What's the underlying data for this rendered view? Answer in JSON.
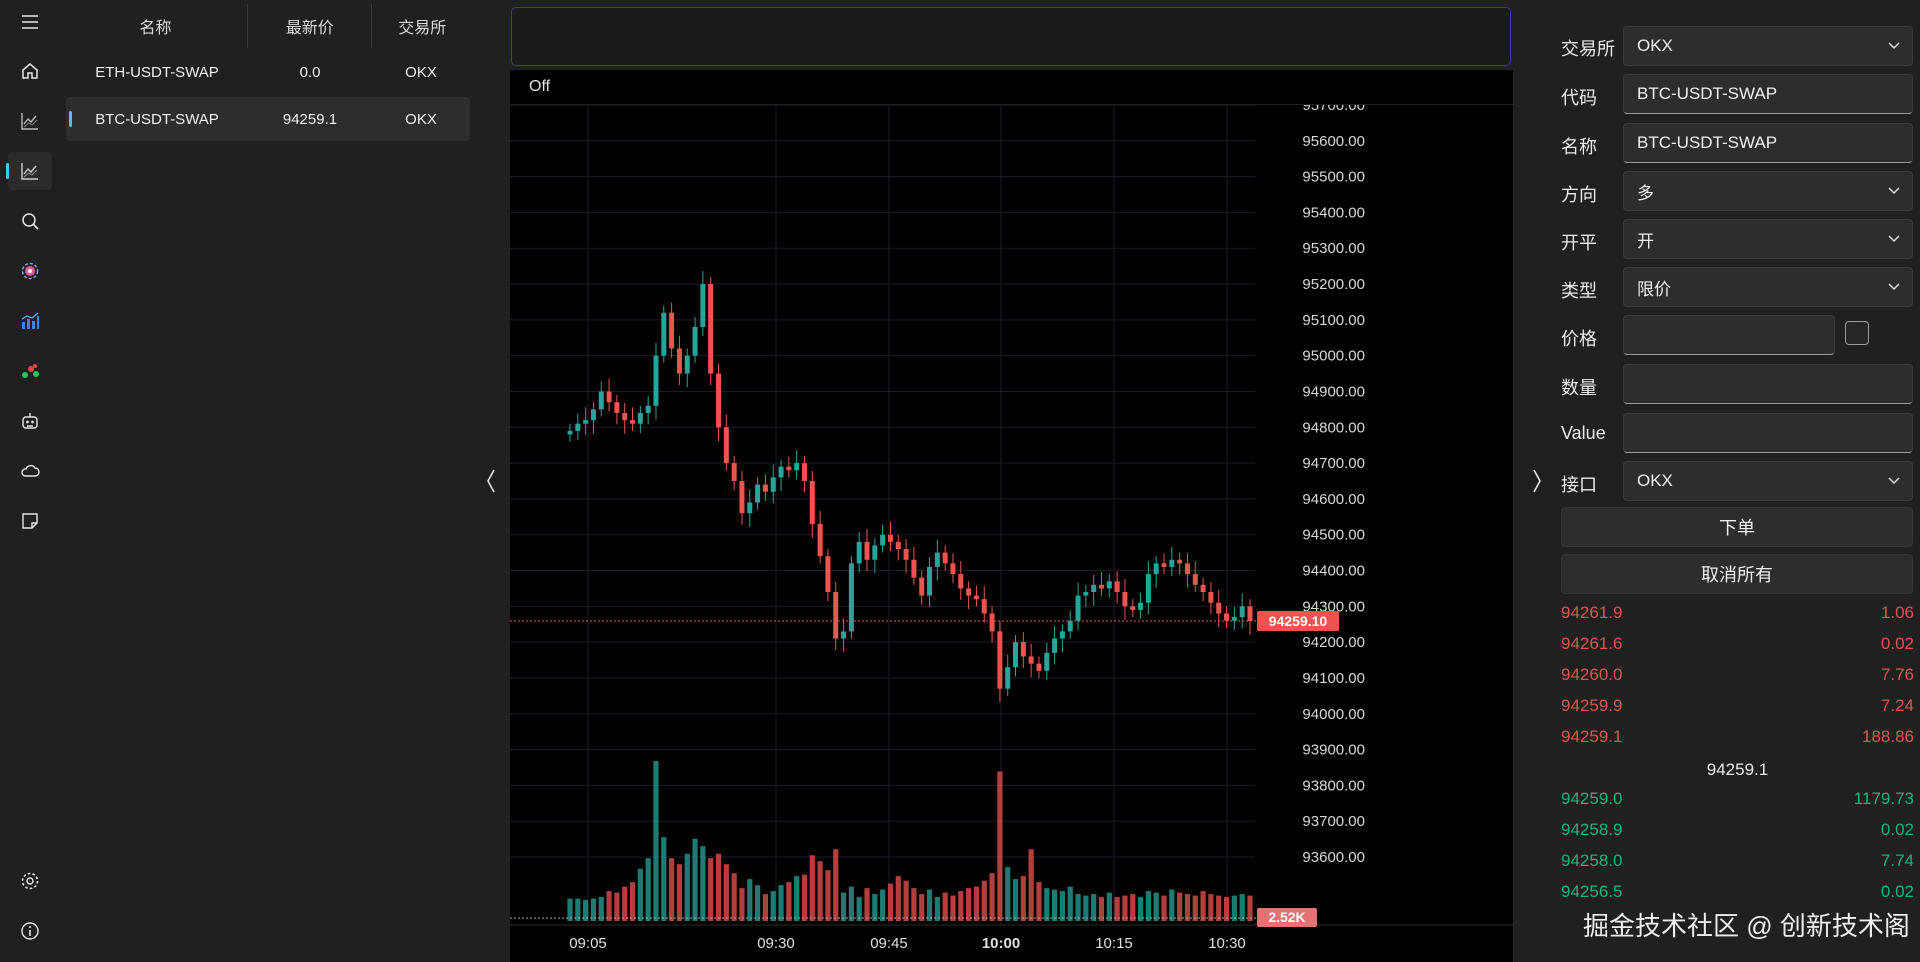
{
  "nav": {
    "items": [
      "menu-icon",
      "home-icon",
      "chart-icon",
      "chart-active-icon",
      "search-icon",
      "dashboard-icon",
      "analytics-icon",
      "scatter-icon",
      "robot-icon",
      "cloud-icon",
      "note-icon"
    ],
    "bottom": [
      "settings-icon",
      "info-icon"
    ]
  },
  "watchlist": {
    "headers": [
      "名称",
      "最新价",
      "交易所"
    ],
    "rows": [
      {
        "name": "ETH-USDT-SWAP",
        "price": "0.0",
        "exchange": "OKX"
      },
      {
        "name": "BTC-USDT-SWAP",
        "price": "94259.1",
        "exchange": "OKX"
      }
    ]
  },
  "chart": {
    "mode_label": "Off",
    "last_price_label": "94259.10",
    "volume_label": "2.52K",
    "colors": {
      "up": "#26a69a",
      "down": "#ef5350",
      "up_vol": "#26a69a",
      "down_vol": "#ef5350"
    }
  },
  "chart_data": {
    "type": "candlestick",
    "x_ticks": [
      "09:05",
      "09:30",
      "09:45",
      "10:00",
      "10:15",
      "10:30"
    ],
    "y_ticks": [
      "95700.00",
      "95600.00",
      "95500.00",
      "95400.00",
      "95300.00",
      "95200.00",
      "95100.00",
      "95000.00",
      "94900.00",
      "94800.00",
      "94700.00",
      "94600.00",
      "94500.00",
      "94400.00",
      "94300.00",
      "94200.00",
      "94100.00",
      "94000.00",
      "93900.00",
      "93800.00",
      "93700.00",
      "93600.00"
    ],
    "y_range": [
      93600,
      95700
    ],
    "last_price": 94259.1,
    "current_volume": "2.52K",
    "closes": [
      94790,
      94810,
      94820,
      94850,
      94900,
      94870,
      94840,
      94820,
      94810,
      94840,
      94860,
      95000,
      95120,
      95020,
      94950,
      95000,
      95080,
      95200,
      94950,
      94800,
      94700,
      94650,
      94560,
      94590,
      94640,
      94620,
      94660,
      94690,
      94680,
      94700,
      94650,
      94530,
      94440,
      94340,
      94210,
      94230,
      94420,
      94480,
      94430,
      94470,
      94500,
      94480,
      94460,
      94430,
      94380,
      94330,
      94410,
      94450,
      94420,
      94390,
      94350,
      94330,
      94320,
      94280,
      94230,
      94070,
      94130,
      94200,
      94160,
      94140,
      94120,
      94170,
      94210,
      94230,
      94260,
      94330,
      94340,
      94360,
      94350,
      94370,
      94340,
      94300,
      94290,
      94310,
      94390,
      94420,
      94410,
      94430,
      94420,
      94390,
      94360,
      94340,
      94310,
      94280,
      94260,
      94270,
      94300,
      94259
    ],
    "volumes": [
      150,
      150,
      140,
      150,
      160,
      200,
      190,
      230,
      260,
      350,
      420,
      1070,
      560,
      420,
      380,
      450,
      550,
      500,
      420,
      450,
      380,
      320,
      220,
      280,
      240,
      180,
      200,
      240,
      260,
      300,
      310,
      440,
      400,
      340,
      480,
      190,
      230,
      160,
      220,
      180,
      210,
      250,
      300,
      270,
      220,
      180,
      210,
      160,
      190,
      170,
      200,
      220,
      230,
      270,
      320,
      1000,
      360,
      280,
      300,
      480,
      260,
      220,
      210,
      200,
      230,
      180,
      170,
      180,
      160,
      190,
      160,
      170,
      180,
      160,
      200,
      190,
      170,
      210,
      190,
      180,
      170,
      200,
      180,
      170,
      160,
      170,
      180,
      170
    ]
  },
  "order_form": {
    "exchange": {
      "label": "交易所",
      "value": "OKX"
    },
    "symbol": {
      "label": "代码",
      "value": "BTC-USDT-SWAP"
    },
    "name": {
      "label": "名称",
      "value": "BTC-USDT-SWAP"
    },
    "direction": {
      "label": "方向",
      "value": "多"
    },
    "offset": {
      "label": "开平",
      "value": "开"
    },
    "type": {
      "label": "类型",
      "value": "限价"
    },
    "price": {
      "label": "价格",
      "value": ""
    },
    "volume": {
      "label": "数量",
      "value": ""
    },
    "value": {
      "label": "Value",
      "value": ""
    },
    "gateway": {
      "label": "接口",
      "value": "OKX"
    },
    "send_label": "下单",
    "cancel_all_label": "取消所有"
  },
  "orderbook": {
    "asks": [
      {
        "price": "94261.9",
        "volume": "1.06"
      },
      {
        "price": "94261.6",
        "volume": "0.02"
      },
      {
        "price": "94260.0",
        "volume": "7.76"
      },
      {
        "price": "94259.9",
        "volume": "7.24"
      },
      {
        "price": "94259.1",
        "volume": "188.86"
      }
    ],
    "last": "94259.1",
    "bids": [
      {
        "price": "94259.0",
        "volume": "1179.73"
      },
      {
        "price": "94258.9",
        "volume": "0.02"
      },
      {
        "price": "94258.0",
        "volume": "7.74"
      },
      {
        "price": "94256.5",
        "volume": "0.02"
      }
    ]
  },
  "watermark": "掘金技术社区 @ 创新技术阁"
}
